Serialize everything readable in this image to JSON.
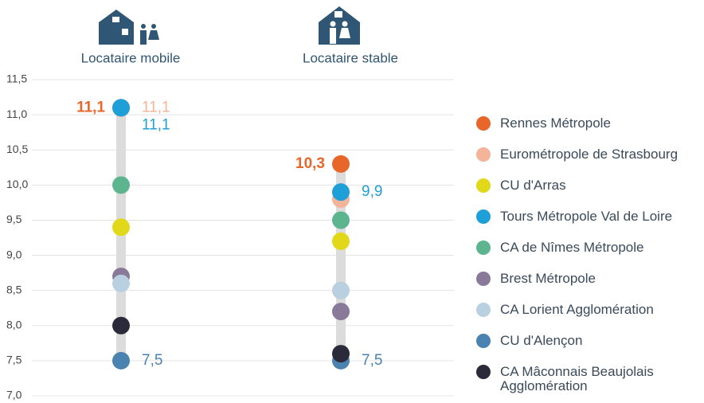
{
  "chart_data": {
    "type": "dot",
    "categories": [
      "Locataire mobile",
      "Locataire stable"
    ],
    "ylim": [
      7.0,
      11.5
    ],
    "yticks": [
      {
        "value": 7.0,
        "label": "7,0"
      },
      {
        "value": 7.5,
        "label": "7,5"
      },
      {
        "value": 8.0,
        "label": "8,0"
      },
      {
        "value": 8.5,
        "label": "8,5"
      },
      {
        "value": 9.0,
        "label": "9,0"
      },
      {
        "value": 9.5,
        "label": "9,5"
      },
      {
        "value": 10.0,
        "label": "10,0"
      },
      {
        "value": 10.5,
        "label": "10,5"
      },
      {
        "value": 11.0,
        "label": "11,0"
      },
      {
        "value": 11.5,
        "label": "11,5"
      }
    ],
    "grid": true,
    "series": [
      {
        "name": "Rennes Métropole",
        "color": "#e8662a",
        "values": [
          11.1,
          10.3
        ],
        "value_labels": [
          "11,1",
          "10,3"
        ]
      },
      {
        "name": "Eurométropole de Strasbourg",
        "color": "#f4b49a",
        "values": [
          11.1,
          9.8
        ],
        "value_labels": [
          "11,1",
          null
        ]
      },
      {
        "name": "CU d'Arras",
        "color": "#e2d81a",
        "values": [
          9.4,
          9.2
        ]
      },
      {
        "name": "Tours Métropole Val de Loire",
        "color": "#1f9fd8",
        "values": [
          11.1,
          9.9
        ],
        "value_labels": [
          "11,1",
          "9,9"
        ]
      },
      {
        "name": "CA de Nîmes Métropole",
        "color": "#5db58f",
        "values": [
          10.0,
          9.5
        ]
      },
      {
        "name": "Brest Métropole",
        "color": "#8a7a9a",
        "values": [
          8.7,
          8.2
        ]
      },
      {
        "name": "CA Lorient Agglomération",
        "color": "#b9d0e0",
        "values": [
          8.6,
          8.5
        ]
      },
      {
        "name": "CU d'Alençon",
        "color": "#4a82b0",
        "values": [
          7.5,
          7.5
        ],
        "value_labels": [
          "7,5",
          "7,5"
        ]
      },
      {
        "name": "CA Mâconnais Beaujolais Agglomération",
        "color": "#2a2a3a",
        "values": [
          8.0,
          7.6
        ]
      }
    ]
  }
}
